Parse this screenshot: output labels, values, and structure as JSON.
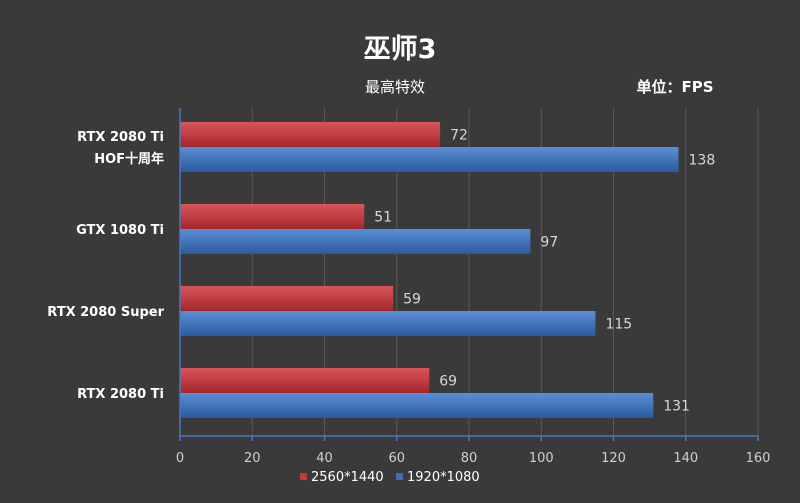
{
  "chart_data": {
    "type": "bar",
    "orientation": "horizontal",
    "title": "巫师3",
    "subtitle": "最高特效",
    "unit_label": "单位：FPS",
    "categories": [
      [
        "RTX 2080 Ti",
        "HOF十周年"
      ],
      [
        "GTX 1080 Ti"
      ],
      [
        "RTX 2080 Super"
      ],
      [
        "RTX 2080 Ti"
      ]
    ],
    "series": [
      {
        "name": "2560*1440",
        "color": "#c0393b",
        "values": [
          72,
          51,
          59,
          69
        ]
      },
      {
        "name": "1920*1080",
        "color": "#3b6fb6",
        "values": [
          138,
          97,
          115,
          131
        ]
      }
    ],
    "xlim": [
      0,
      160
    ],
    "xticks": [
      0,
      20,
      40,
      60,
      80,
      100,
      120,
      140,
      160
    ],
    "grid": true,
    "legend_position": "bottom",
    "axis_color": "#4a78c0",
    "grid_color": "#5a5a5a"
  }
}
